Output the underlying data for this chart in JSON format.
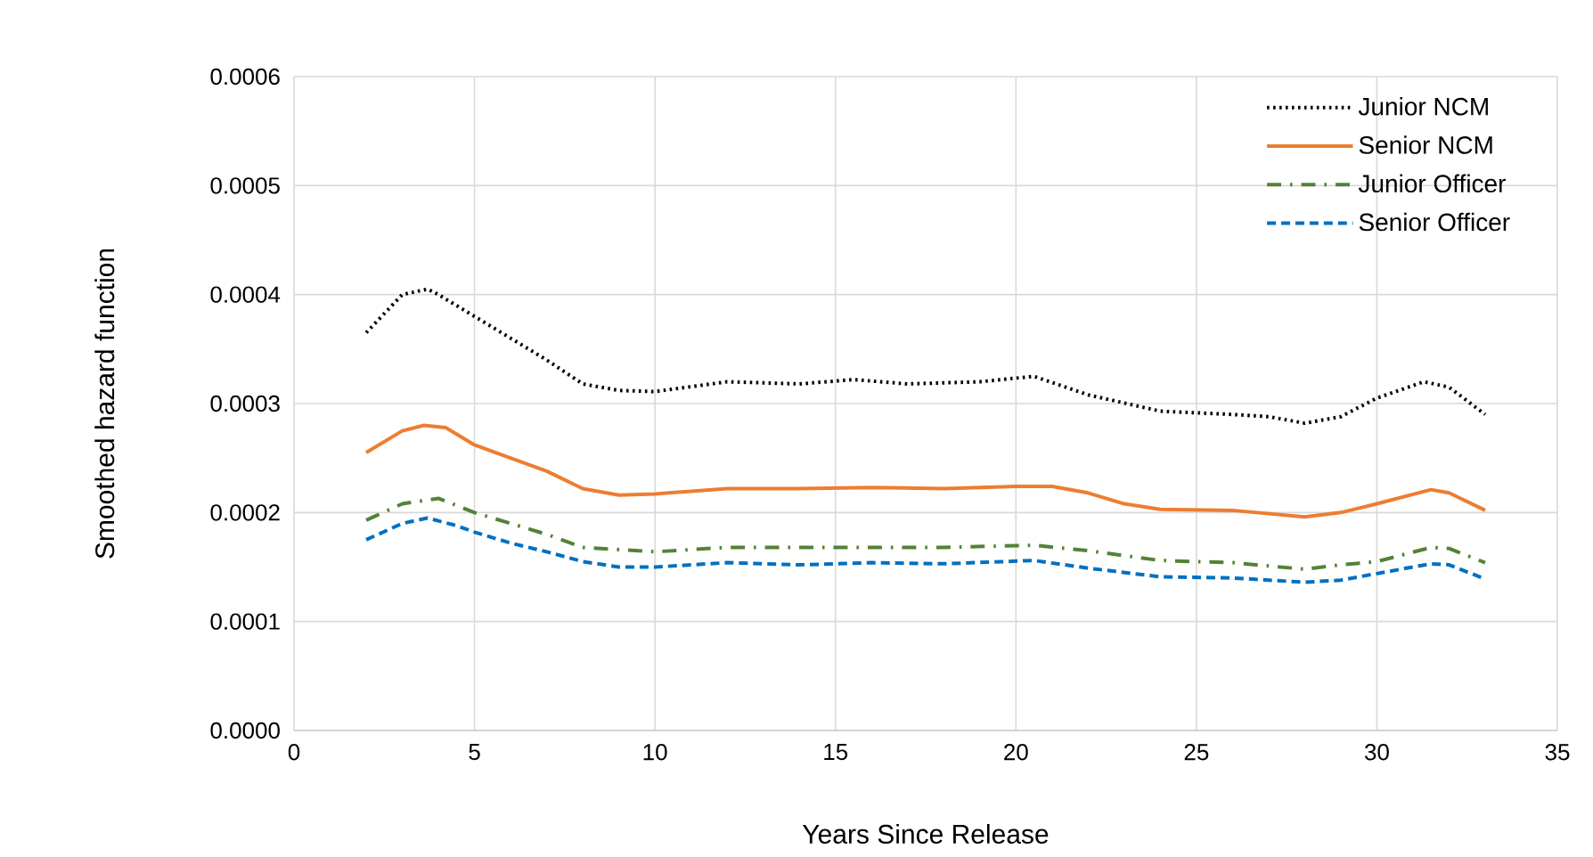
{
  "chart_data": {
    "type": "line",
    "xlabel": "Years Since Release",
    "ylabel": "Smoothed hazard function",
    "xlim": [
      0,
      35
    ],
    "xticks": [
      0,
      5,
      10,
      15,
      20,
      25,
      30,
      35
    ],
    "ylim": [
      0,
      0.0006
    ],
    "yticks": [
      {
        "value": 0,
        "label": "0.0000"
      },
      {
        "value": 0.0001,
        "label": "0.0001"
      },
      {
        "value": 0.0002,
        "label": "0.0002"
      },
      {
        "value": 0.0003,
        "label": "0.0003"
      },
      {
        "value": 0.0004,
        "label": "0.0004"
      },
      {
        "value": 0.0005,
        "label": "0.0005"
      },
      {
        "value": 0.0006,
        "label": "0.0006"
      }
    ],
    "grid": true,
    "legend": "top right",
    "marker": "none",
    "series": [
      {
        "name": "Junior NCM",
        "color": "#000000",
        "line_style": "dotted",
        "x": [
          2,
          3,
          3.7,
          4,
          5,
          6,
          7,
          8,
          9,
          10,
          12,
          14,
          15.5,
          17,
          19,
          20.5,
          22,
          24,
          26,
          27,
          28,
          29,
          30,
          31.3,
          32,
          33
        ],
        "values": [
          0.000365,
          0.0004,
          0.000405,
          0.0004,
          0.00038,
          0.00036,
          0.00034,
          0.000318,
          0.000312,
          0.000311,
          0.00032,
          0.000318,
          0.000322,
          0.000318,
          0.00032,
          0.000325,
          0.000308,
          0.000293,
          0.00029,
          0.000288,
          0.000282,
          0.000288,
          0.000305,
          0.00032,
          0.000315,
          0.00029
        ]
      },
      {
        "name": "Senior NCM",
        "color": "#ed7d31",
        "line_style": "solid",
        "x": [
          2,
          3,
          3.6,
          4.2,
          5,
          6,
          7,
          8,
          9,
          10,
          12,
          14,
          16,
          18,
          20,
          21,
          22,
          23,
          24,
          26,
          28,
          29,
          30,
          31.5,
          32,
          33
        ],
        "values": [
          0.000255,
          0.000275,
          0.00028,
          0.000278,
          0.000262,
          0.00025,
          0.000238,
          0.000222,
          0.000216,
          0.000217,
          0.000222,
          0.000222,
          0.000223,
          0.000222,
          0.000224,
          0.000224,
          0.000218,
          0.000208,
          0.000203,
          0.000202,
          0.000196,
          0.0002,
          0.000208,
          0.000221,
          0.000218,
          0.000202
        ]
      },
      {
        "name": "Junior Officer",
        "color": "#548235",
        "line_style": "dashdot",
        "x": [
          2,
          3,
          4,
          5,
          6,
          7,
          8,
          10,
          12,
          15,
          18,
          20.5,
          22,
          24,
          26,
          28,
          29,
          30,
          31.5,
          32,
          33
        ],
        "values": [
          0.000193,
          0.000208,
          0.000213,
          0.0002,
          0.00019,
          0.00018,
          0.000168,
          0.000164,
          0.000168,
          0.000168,
          0.000168,
          0.00017,
          0.000165,
          0.000156,
          0.000154,
          0.000148,
          0.000152,
          0.000155,
          0.000168,
          0.000167,
          0.000154
        ]
      },
      {
        "name": "Senior Officer",
        "color": "#0070c0",
        "line_style": "dashed",
        "x": [
          2,
          3,
          3.7,
          4.5,
          5,
          6,
          7,
          8,
          9,
          10,
          12,
          14,
          16,
          18,
          20.5,
          22,
          24,
          26,
          28,
          29,
          30,
          31.5,
          32,
          33
        ],
        "values": [
          0.000175,
          0.00019,
          0.000195,
          0.000188,
          0.000182,
          0.000172,
          0.000164,
          0.000155,
          0.00015,
          0.00015,
          0.000154,
          0.000152,
          0.000154,
          0.000153,
          0.000156,
          0.000149,
          0.000141,
          0.00014,
          0.000136,
          0.000138,
          0.000144,
          0.000153,
          0.000152,
          0.000139
        ]
      }
    ]
  }
}
